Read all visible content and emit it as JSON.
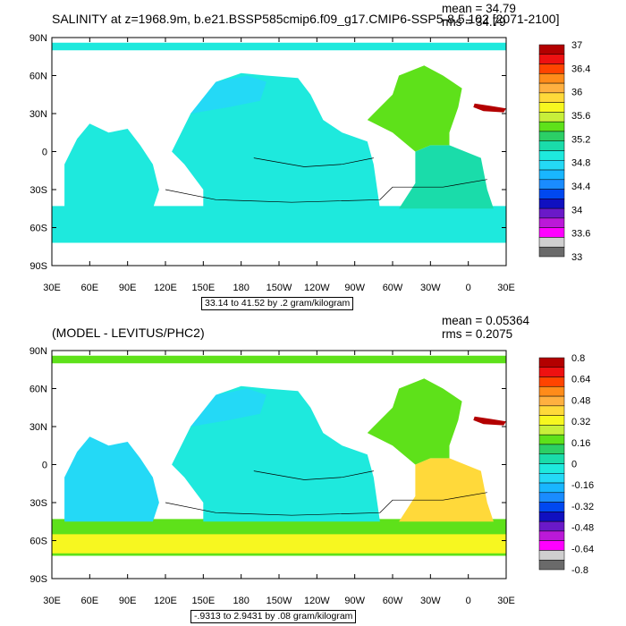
{
  "panels": [
    {
      "title": "SALINITY at z=1968.9m, b.e21.BSSP585cmip6.f09_g17.CMIP6-SSP5-8.5.102 [2071-2100]",
      "mean": "mean = 34.79",
      "rms": "rms = 34.79",
      "contour_info": "33.14 to 41.52 by .2 gram/kilogram",
      "y_ticks": [
        "90N",
        "60N",
        "30N",
        "0",
        "30S",
        "60S",
        "90S"
      ],
      "x_ticks": [
        "30E",
        "60E",
        "90E",
        "120E",
        "150E",
        "180",
        "150W",
        "120W",
        "90W",
        "60W",
        "30W",
        "0",
        "30E"
      ],
      "colorbar": {
        "labels": [
          "37",
          "36.4",
          "36",
          "35.6",
          "35.2",
          "34.8",
          "34.4",
          "34",
          "33.6",
          "33"
        ],
        "colors": [
          "#b30000",
          "#ee1111",
          "#ff4400",
          "#ff8c1a",
          "#ffb040",
          "#ffd93a",
          "#f7f720",
          "#c8ef3a",
          "#5ee11a",
          "#2ccf66",
          "#1adcaa",
          "#1ee9dd",
          "#24d9f6",
          "#19b6ff",
          "#1a8cff",
          "#0048f0",
          "#1010c0",
          "#6a19c8",
          "#bb19d8",
          "#ff00ff",
          "#cfcfcf",
          "#6a6a6a"
        ]
      },
      "regions": {
        "pacific": "#1ee9dd",
        "atlantic_south": "#1adcaa",
        "atlantic_north": "#5ee11a",
        "southern": "#1ee9dd",
        "arctic": "#1ee9dd",
        "indian": "#1ee9dd",
        "pacific_nw": "#24d9f6"
      }
    },
    {
      "title": "(MODEL - LEVITUS/PHC2)",
      "mean": "mean = 0.05364",
      "rms": "rms = 0.2075",
      "contour_info": "-.9313 to 2.9431 by .08 gram/kilogram",
      "y_ticks": [
        "90N",
        "60N",
        "30N",
        "0",
        "30S",
        "60S",
        "90S"
      ],
      "x_ticks": [
        "30E",
        "60E",
        "90E",
        "120E",
        "150E",
        "180",
        "150W",
        "120W",
        "90W",
        "60W",
        "30W",
        "0",
        "30E"
      ],
      "colorbar": {
        "labels": [
          "0.8",
          "0.64",
          "0.48",
          "0.32",
          "0.16",
          "0",
          "-0.16",
          "-0.32",
          "-0.48",
          "-0.64",
          "-0.8"
        ],
        "colors": [
          "#b30000",
          "#ee1111",
          "#ff4400",
          "#ff8c1a",
          "#ffb040",
          "#ffd93a",
          "#f7f720",
          "#c8ef3a",
          "#5ee11a",
          "#2ccf66",
          "#1adcaa",
          "#1ee9dd",
          "#24d9f6",
          "#19b6ff",
          "#1a8cff",
          "#0048f0",
          "#1010c0",
          "#6a19c8",
          "#bb19d8",
          "#ff00ff",
          "#cfcfcf",
          "#6a6a6a"
        ]
      },
      "regions": {
        "pacific": "#1ee9dd",
        "atlantic_south": "#ffd93a",
        "atlantic_north": "#5ee11a",
        "southern": "#5ee11a",
        "southern_band": "#f7f720",
        "arctic": "#5ee11a",
        "indian": "#24d9f6",
        "pacific_nw": "#24d9f6"
      }
    }
  ]
}
